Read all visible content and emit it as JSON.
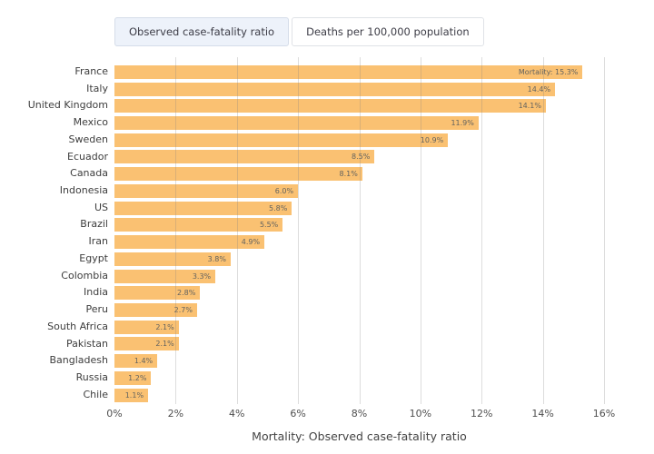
{
  "toggle": {
    "options": [
      {
        "label": "Observed case-fatality ratio",
        "selected": true
      },
      {
        "label": "Deaths per 100,000 population",
        "selected": false
      }
    ]
  },
  "chart_data": {
    "type": "bar",
    "orientation": "horizontal",
    "categories": [
      "France",
      "Italy",
      "United Kingdom",
      "Mexico",
      "Sweden",
      "Ecuador",
      "Canada",
      "Indonesia",
      "US",
      "Brazil",
      "Iran",
      "Egypt",
      "Colombia",
      "India",
      "Peru",
      "South Africa",
      "Pakistan",
      "Bangladesh",
      "Russia",
      "Chile"
    ],
    "values": [
      15.3,
      14.4,
      14.1,
      11.9,
      10.9,
      8.5,
      8.1,
      6.0,
      5.8,
      5.5,
      4.9,
      3.8,
      3.3,
      2.8,
      2.7,
      2.1,
      2.1,
      1.4,
      1.2,
      1.1
    ],
    "data_labels": [
      "Mortality: 15.3%",
      "14.4%",
      "14.1%",
      "11.9%",
      "10.9%",
      "8.5%",
      "8.1%",
      "6.0%",
      "5.8%",
      "5.5%",
      "4.9%",
      "3.8%",
      "3.3%",
      "2.8%",
      "2.7%",
      "2.1%",
      "2.1%",
      "1.4%",
      "1.2%",
      "1.1%"
    ],
    "x_ticks": [
      "0%",
      "2%",
      "4%",
      "6%",
      "8%",
      "10%",
      "12%",
      "14%",
      "16%"
    ],
    "xlim": [
      0,
      16
    ],
    "xlabel": "Mortality: Observed case-fatality ratio",
    "grid": true,
    "legend": "none",
    "colors": {
      "bar": "#fac172",
      "gridline": "#dedede",
      "category_label": "#3d3d3d",
      "value_label": "#63635f",
      "selected_toggle_bg": "#edf2fa"
    }
  }
}
